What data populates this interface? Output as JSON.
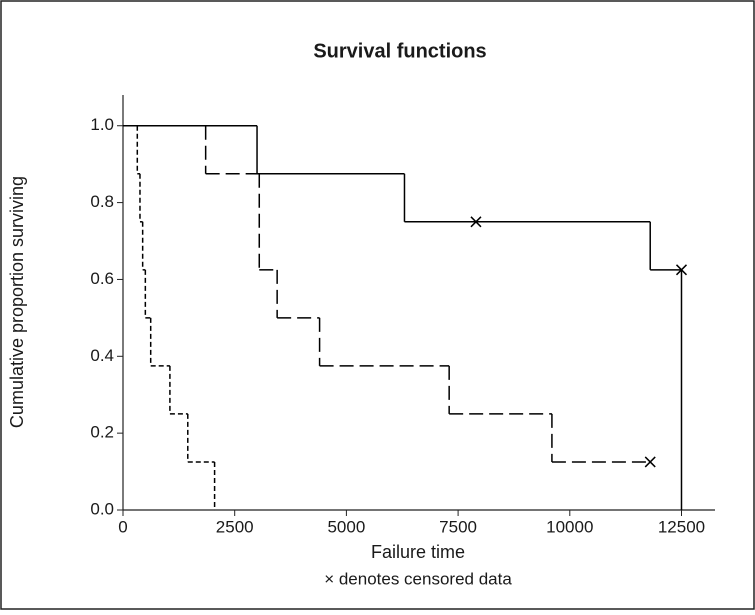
{
  "chart_data": {
    "type": "survival",
    "title": "Survival functions",
    "x_label": "Failure time",
    "note": "× denotes censored data",
    "y_label": "Cumulative proportion surviving",
    "xlim": [
      0,
      13250
    ],
    "ylim": [
      0,
      1.08
    ],
    "xticks": [
      0,
      2500,
      5000,
      7500,
      10000,
      12500
    ],
    "yticks": [
      {
        "value": 0,
        "label": "0.0"
      },
      {
        "value": 0.2,
        "label": "0.2"
      },
      {
        "value": 0.4,
        "label": "0.4"
      },
      {
        "value": 0.6,
        "label": "0.6"
      },
      {
        "value": 0.8,
        "label": "0.8"
      },
      {
        "value": 1,
        "label": "1.0"
      }
    ],
    "series": [
      {
        "color": "#000000",
        "linestyle": "solid",
        "x": [
          0,
          3000,
          6300,
          11800,
          12500
        ],
        "values": [
          1,
          0.875,
          0.75,
          0.625,
          0
        ],
        "censored": {
          "x": [
            7900,
            12500
          ],
          "values": [
            0.75,
            0.625
          ]
        }
      },
      {
        "color": "#000000",
        "linestyle": "longdash",
        "x": [
          0,
          1850,
          3050,
          3450,
          4400,
          7300,
          9600
        ],
        "values": [
          1,
          0.875,
          0.625,
          0.5,
          0.375,
          0.25,
          0.125
        ],
        "censored": {
          "x": [
            11800
          ],
          "values": [
            0.125
          ]
        }
      },
      {
        "color": "#000000",
        "linestyle": "shortdash",
        "x": [
          0,
          320,
          380,
          440,
          500,
          620,
          1050,
          1450,
          2050
        ],
        "values": [
          1,
          0.875,
          0.75,
          0.625,
          0.5,
          0.375,
          0.25,
          0.125,
          0
        ],
        "censored": {
          "x": [],
          "values": []
        }
      }
    ]
  }
}
